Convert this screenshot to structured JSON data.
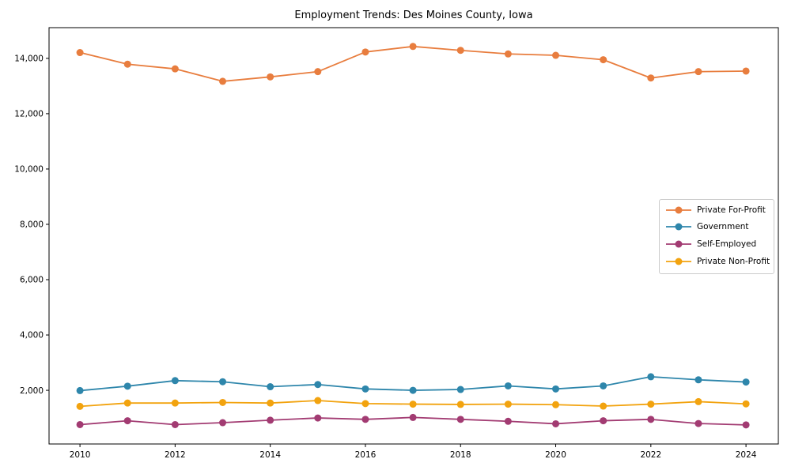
{
  "chart_data": {
    "type": "line",
    "title": "Employment Trends: Des Moines County, Iowa",
    "xlabel": "",
    "ylabel": "",
    "grid": false,
    "legend_position": "center right",
    "marker": "circle",
    "background_color": "#ffffff",
    "axis_color": "#000000",
    "legend_border_color": "#cccccc",
    "x": [
      2010,
      2011,
      2012,
      2013,
      2014,
      2015,
      2016,
      2017,
      2018,
      2019,
      2020,
      2021,
      2022,
      2023,
      2024
    ],
    "x_ticks": [
      2010,
      2012,
      2014,
      2016,
      2018,
      2020,
      2022,
      2024
    ],
    "y_ticks": [
      2000,
      4000,
      6000,
      8000,
      10000,
      12000,
      14000
    ],
    "y_tick_labels": [
      "2,000",
      "4,000",
      "6,000",
      "8,000",
      "10,000",
      "12,000",
      "14,000"
    ],
    "xlim": [
      2009.35,
      2024.68
    ],
    "ylim": [
      60,
      15110
    ],
    "series": [
      {
        "name": "Private For-Profit",
        "color": "#E87D3E",
        "values": [
          14210,
          13790,
          13620,
          13170,
          13330,
          13520,
          14230,
          14430,
          14290,
          14160,
          14110,
          13950,
          13290,
          13520,
          13540
        ]
      },
      {
        "name": "Government",
        "color": "#2E86AB",
        "values": [
          1990,
          2150,
          2350,
          2310,
          2130,
          2210,
          2050,
          2000,
          2030,
          2160,
          2050,
          2160,
          2490,
          2380,
          2300
        ]
      },
      {
        "name": "Self-Employed",
        "color": "#A23B72",
        "values": [
          760,
          900,
          760,
          830,
          920,
          1000,
          950,
          1020,
          950,
          880,
          790,
          900,
          950,
          800,
          750
        ]
      },
      {
        "name": "Private Non-Profit",
        "color": "#F2A30F",
        "values": [
          1420,
          1540,
          1540,
          1560,
          1540,
          1630,
          1520,
          1500,
          1490,
          1500,
          1480,
          1430,
          1500,
          1590,
          1510
        ]
      }
    ]
  }
}
